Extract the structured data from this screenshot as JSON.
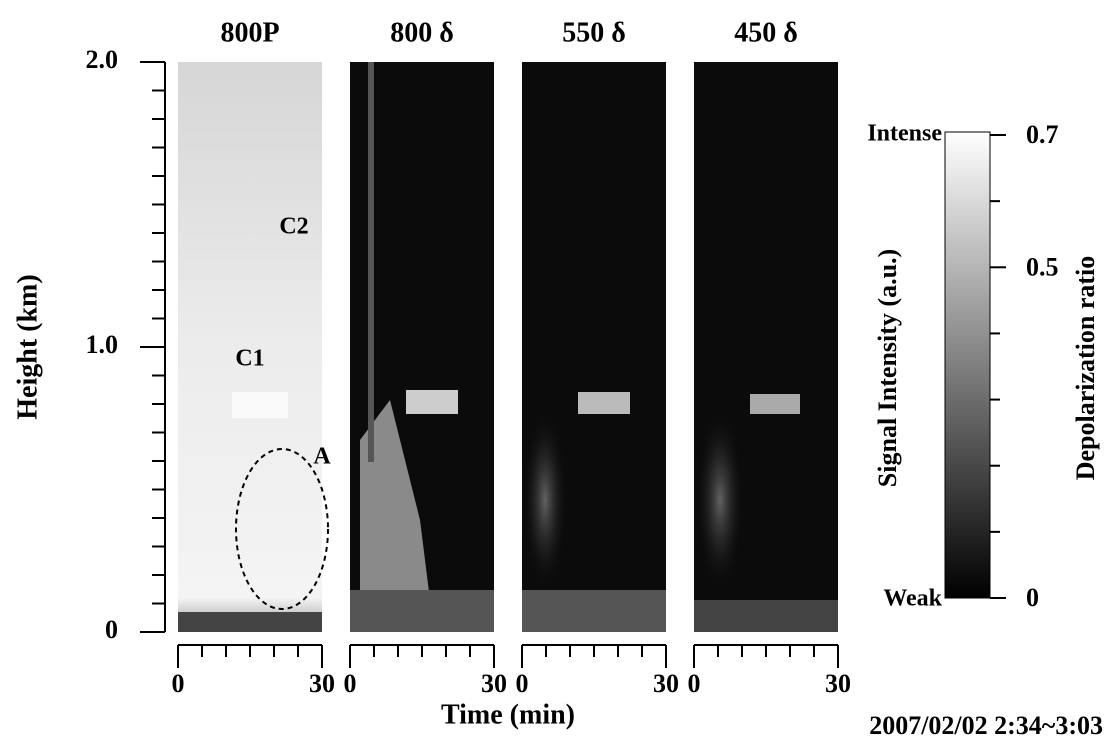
{
  "chart_data": [
    {
      "type": "image",
      "title": "800P",
      "annotations": [
        "C2",
        "C1",
        "A"
      ]
    },
    {
      "type": "image",
      "title": "800 δ"
    },
    {
      "type": "image",
      "title": "550 δ"
    },
    {
      "type": "image",
      "title": "450 δ"
    }
  ],
  "axes": {
    "y_label": "Height (km)",
    "x_label": "Time (min)",
    "ylim": [
      0,
      2
    ],
    "yticks": [
      0,
      {
        "value": 1,
        "label": "1.0"
      },
      {
        "value": 2,
        "label": "2.0"
      }
    ],
    "yminor": [
      0.1,
      0.2,
      0.3,
      0.4,
      0.5,
      0.6,
      0.7,
      0.8,
      0.9,
      1.1,
      1.2,
      1.3,
      1.4,
      1.5,
      1.6,
      1.7,
      1.8,
      1.9
    ],
    "xlim": [
      0,
      30
    ],
    "xticks": [
      0,
      30
    ],
    "xminor": [
      5,
      10,
      15,
      20,
      25
    ]
  },
  "colorbar": {
    "top_label": "Intense",
    "bottom_label": "Weak",
    "left_title": "Signal Intensity (a.u.)",
    "right_title": "Depolarization ratio",
    "ylim": [
      0,
      0.7
    ],
    "yticks": [
      0,
      0.5,
      0.7
    ],
    "yminor": [
      0.1,
      0.2,
      0.3,
      0.4,
      0.6
    ]
  },
  "footnote": "2007/02/02 2:34~3:03"
}
